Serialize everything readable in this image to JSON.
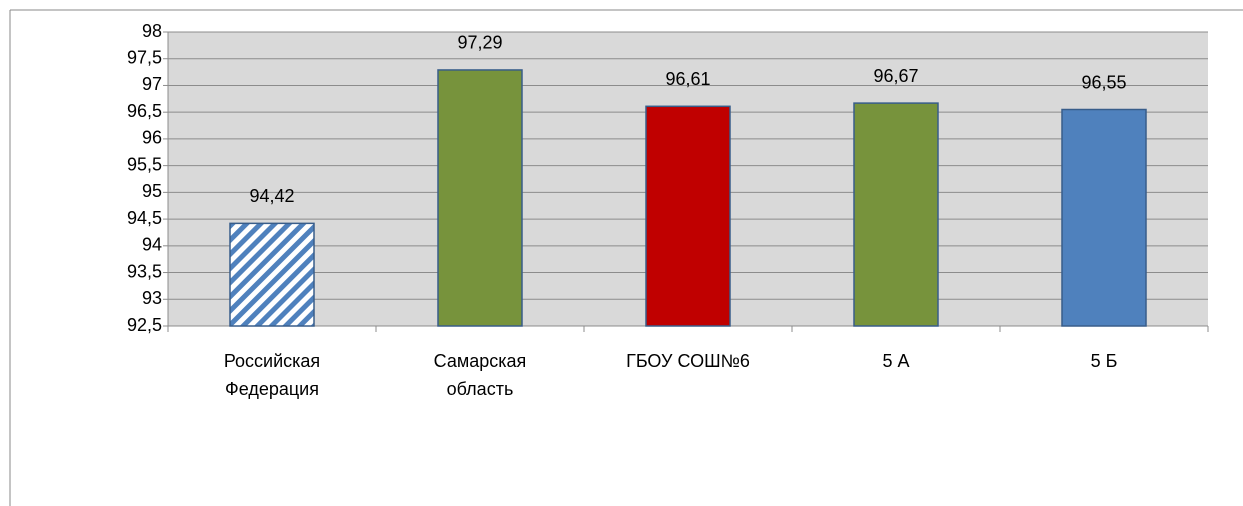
{
  "chart_data": {
    "type": "bar",
    "categories": [
      "Российская\nФедерация",
      "Самарская\nобласть",
      "ГБОУ СОШ№6",
      "5 А",
      "5 Б"
    ],
    "values": [
      94.42,
      97.29,
      96.61,
      96.67,
      96.55
    ],
    "value_labels": [
      "94,42",
      "97,29",
      "96,61",
      "96,67",
      "96,55"
    ],
    "colors": [
      "#4f81bd",
      "#77933c",
      "#c00000",
      "#77933c",
      "#4f81bd"
    ],
    "bar_styles": [
      "hatched",
      "solid",
      "solid",
      "solid",
      "solid"
    ],
    "ylim": [
      92.5,
      98
    ],
    "yticks": [
      {
        "value": 92.5,
        "label": "92,5"
      },
      93,
      {
        "value": 93.5,
        "label": "93,5"
      },
      94,
      {
        "value": 94.5,
        "label": "94,5"
      },
      95,
      {
        "value": 95.5,
        "label": "95,5"
      },
      96,
      {
        "value": 96.5,
        "label": "96,5"
      },
      97,
      {
        "value": 97.5,
        "label": "97,5"
      },
      98
    ],
    "grid": true
  }
}
